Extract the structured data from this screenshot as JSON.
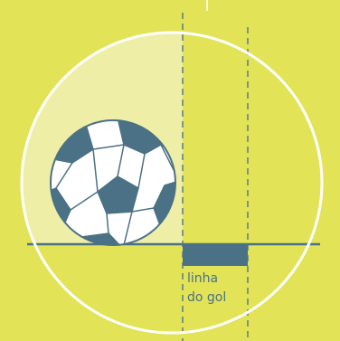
{
  "diagram": {
    "label_line1": "linha",
    "label_line2": "do gol"
  },
  "colors": {
    "background": "#e2e357",
    "circle_outline": "#ffffff",
    "pale_region": "#eeeea6",
    "ground_line": "#4a7186",
    "goal_line_marker": "#4a7186",
    "dashed_lines": "#5b7c8c",
    "ball_white": "#ffffff",
    "ball_patch": "#4a7186",
    "label_text": "#4a7186"
  },
  "icons": {
    "ball": "soccer-ball-icon"
  }
}
